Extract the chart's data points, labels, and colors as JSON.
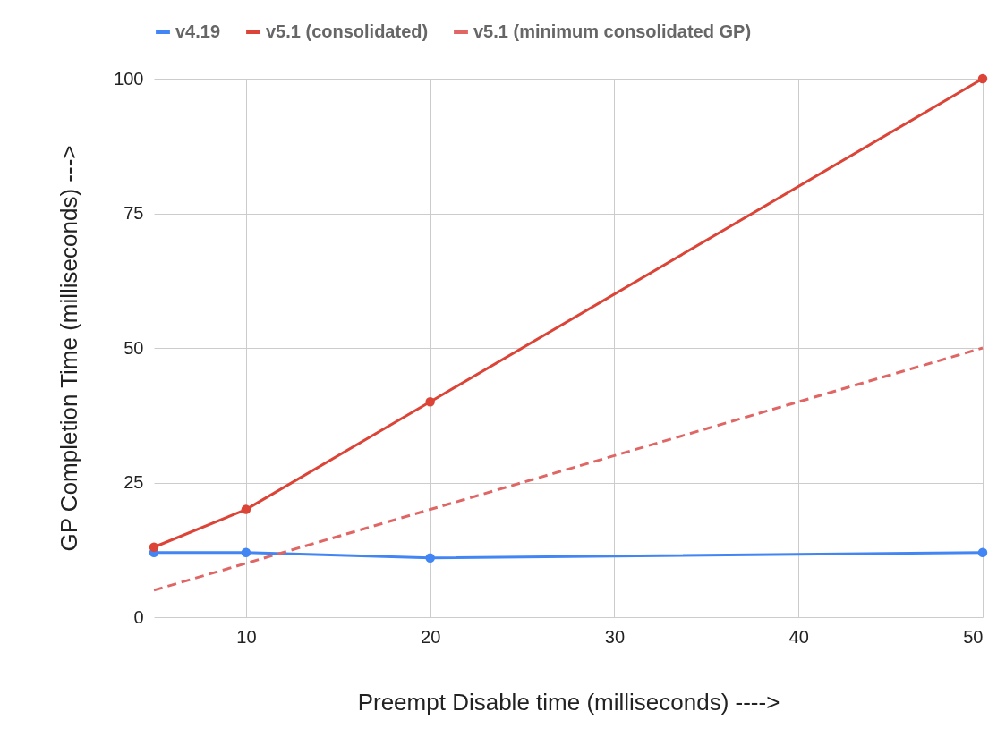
{
  "chart_data": {
    "type": "line",
    "xlabel": "Preempt Disable time (milliseconds) ---->",
    "ylabel": "GP  Completion Time (milliseconds)  --->",
    "x": [
      5,
      10,
      20,
      50
    ],
    "series": [
      {
        "name": "v4.19",
        "color": "#4285f4",
        "values": [
          12,
          12,
          11,
          12
        ]
      },
      {
        "name": "v5.1 (consolidated)",
        "color": "#db4437",
        "values": [
          13,
          20,
          40,
          100
        ]
      },
      {
        "name": "v5.1 (minimum consolidated GP)",
        "color": "#e06666",
        "x": [
          5,
          50
        ],
        "values": [
          5,
          50
        ],
        "line_style": "dashed",
        "marker": "none"
      }
    ],
    "xlim": [
      5,
      50
    ],
    "xticks": [
      10,
      20,
      30,
      40,
      50
    ],
    "ylim": [
      0,
      100
    ],
    "yticks": [
      0,
      25,
      50,
      75,
      100
    ],
    "grid": true,
    "legend": "top",
    "marker": "circle",
    "line_style": "solid"
  }
}
